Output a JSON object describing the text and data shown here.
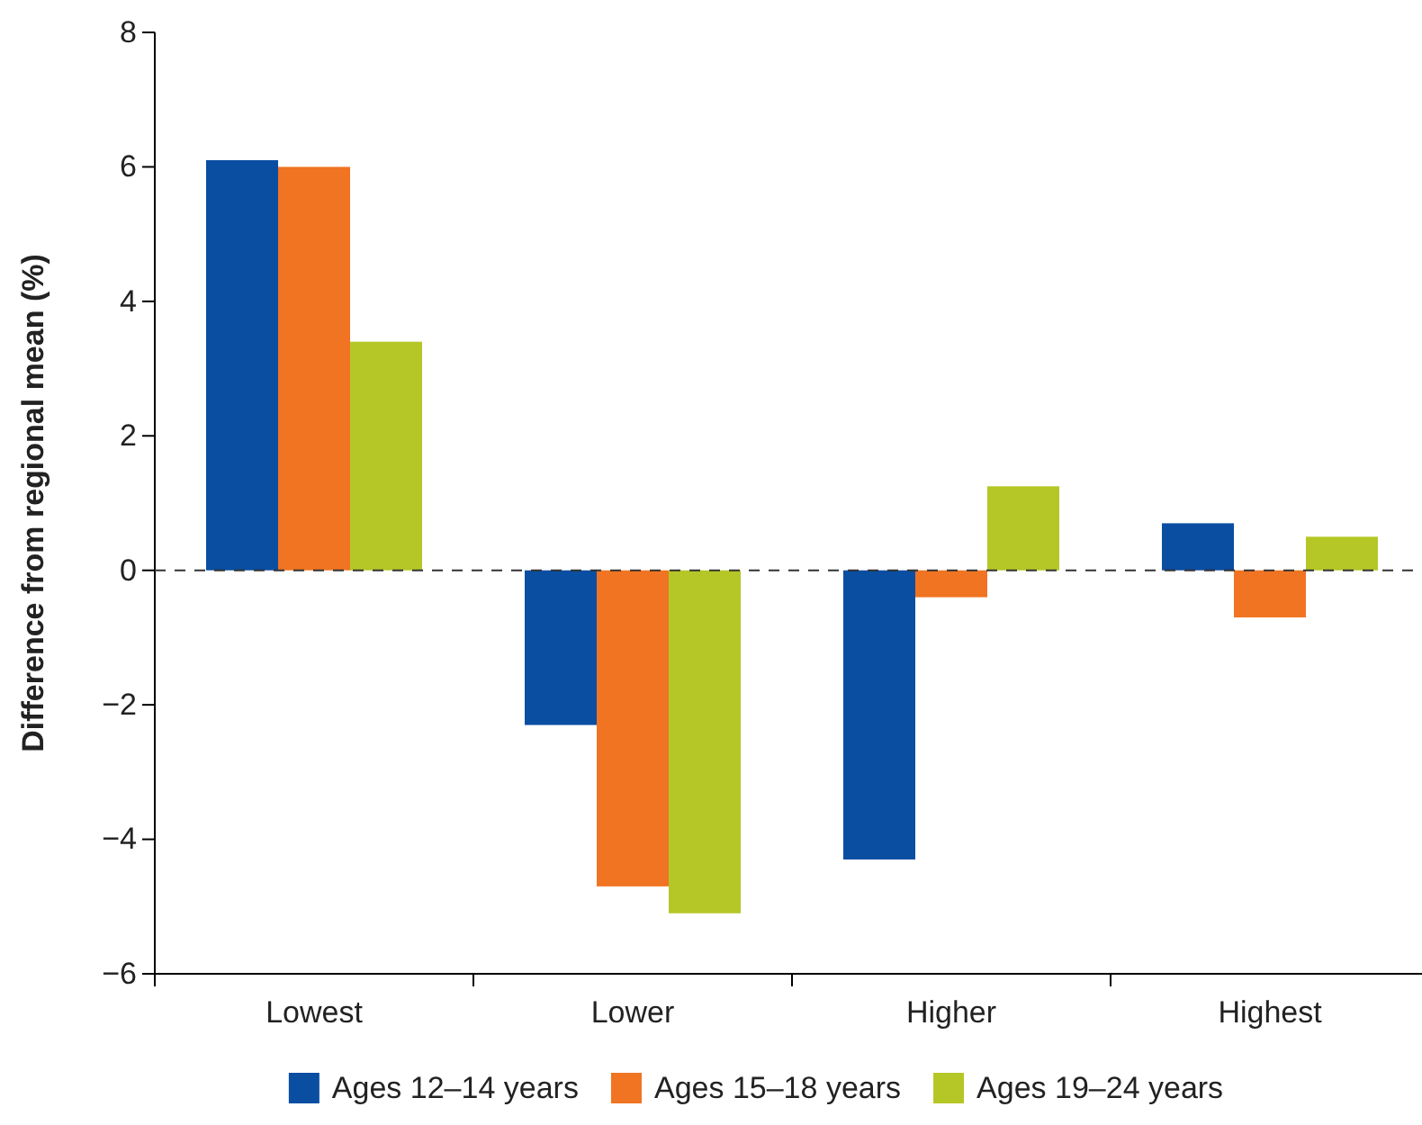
{
  "chart_data": {
    "type": "bar",
    "ylabel": "Difference from regional mean (%)",
    "categories": [
      "Lowest",
      "Lower",
      "Higher",
      "Highest"
    ],
    "series": [
      {
        "name": "Ages 12–14 years",
        "color": "#0a4ea2",
        "values": [
          6.1,
          -2.3,
          -4.3,
          0.7
        ]
      },
      {
        "name": "Ages 15–18 years",
        "color": "#f07422",
        "values": [
          6.0,
          -4.7,
          -0.4,
          -0.7
        ]
      },
      {
        "name": "Ages 19–24 years",
        "color": "#b5c727",
        "values": [
          3.4,
          -5.1,
          1.25,
          0.5
        ]
      }
    ],
    "ylim": [
      -6,
      8
    ],
    "yticks": [
      -6,
      -4,
      -2,
      0,
      2,
      4,
      6,
      8
    ],
    "ref_lines": [
      {
        "axis": "y",
        "value": 0,
        "color": "#333333",
        "line_style": "dashed"
      }
    ],
    "legend": "bottom",
    "grid": false
  }
}
